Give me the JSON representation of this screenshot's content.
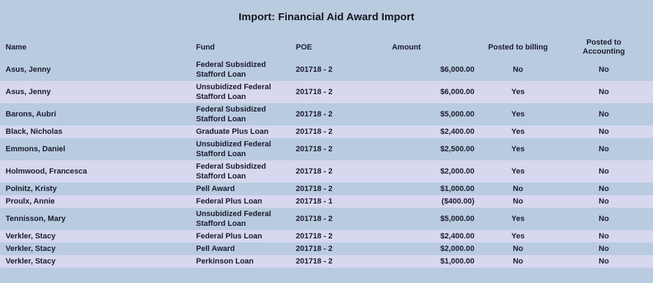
{
  "page": {
    "title": "Import: Financial Aid Award Import",
    "background_color": "#b9cbdf",
    "row_alt_color": "#d7d7f0",
    "text_color": "#1b1b2f"
  },
  "table": {
    "columns": {
      "name": "Name",
      "fund": "Fund",
      "poe": "POE",
      "amount": "Amount",
      "posted_billing": "Posted to billing",
      "posted_accounting": "Posted to Accounting"
    },
    "rows": [
      {
        "name": "Asus, Jenny",
        "fund": "Federal Subsidized Stafford Loan",
        "poe": "201718 - 2",
        "amount": "$6,000.00",
        "posted_billing": "No",
        "posted_accounting": "No"
      },
      {
        "name": "Asus, Jenny",
        "fund": "Unsubidized Federal Stafford Loan",
        "poe": "201718 - 2",
        "amount": "$6,000.00",
        "posted_billing": "Yes",
        "posted_accounting": "No"
      },
      {
        "name": "Barons, Aubri",
        "fund": "Federal Subsidized Stafford Loan",
        "poe": "201718 - 2",
        "amount": "$5,000.00",
        "posted_billing": "Yes",
        "posted_accounting": "No"
      },
      {
        "name": "Black, Nicholas",
        "fund": "Graduate Plus Loan",
        "poe": "201718 - 2",
        "amount": "$2,400.00",
        "posted_billing": "Yes",
        "posted_accounting": "No"
      },
      {
        "name": "Emmons, Daniel",
        "fund": "Unsubidized Federal Stafford Loan",
        "poe": "201718 - 2",
        "amount": "$2,500.00",
        "posted_billing": "Yes",
        "posted_accounting": "No"
      },
      {
        "name": "Holmwood, Francesca",
        "fund": "Federal Subsidized Stafford Loan",
        "poe": "201718 - 2",
        "amount": "$2,000.00",
        "posted_billing": "Yes",
        "posted_accounting": "No"
      },
      {
        "name": "Polnitz, Kristy",
        "fund": "Pell Award",
        "poe": "201718 - 2",
        "amount": "$1,000.00",
        "posted_billing": "No",
        "posted_accounting": "No"
      },
      {
        "name": "Proulx, Annie",
        "fund": "Federal Plus Loan",
        "poe": "201718 - 1",
        "amount": "($400.00)",
        "posted_billing": "No",
        "posted_accounting": "No"
      },
      {
        "name": "Tennisson, Mary",
        "fund": "Unsubidized Federal Stafford Loan",
        "poe": "201718 - 2",
        "amount": "$5,000.00",
        "posted_billing": "Yes",
        "posted_accounting": "No"
      },
      {
        "name": "Verkler, Stacy",
        "fund": "Federal Plus Loan",
        "poe": "201718 - 2",
        "amount": "$2,400.00",
        "posted_billing": "Yes",
        "posted_accounting": "No"
      },
      {
        "name": "Verkler, Stacy",
        "fund": "Pell Award",
        "poe": "201718 - 2",
        "amount": "$2,000.00",
        "posted_billing": "No",
        "posted_accounting": "No"
      },
      {
        "name": "Verkler, Stacy",
        "fund": "Perkinson Loan",
        "poe": "201718 - 2",
        "amount": "$1,000.00",
        "posted_billing": "No",
        "posted_accounting": "No"
      }
    ]
  }
}
